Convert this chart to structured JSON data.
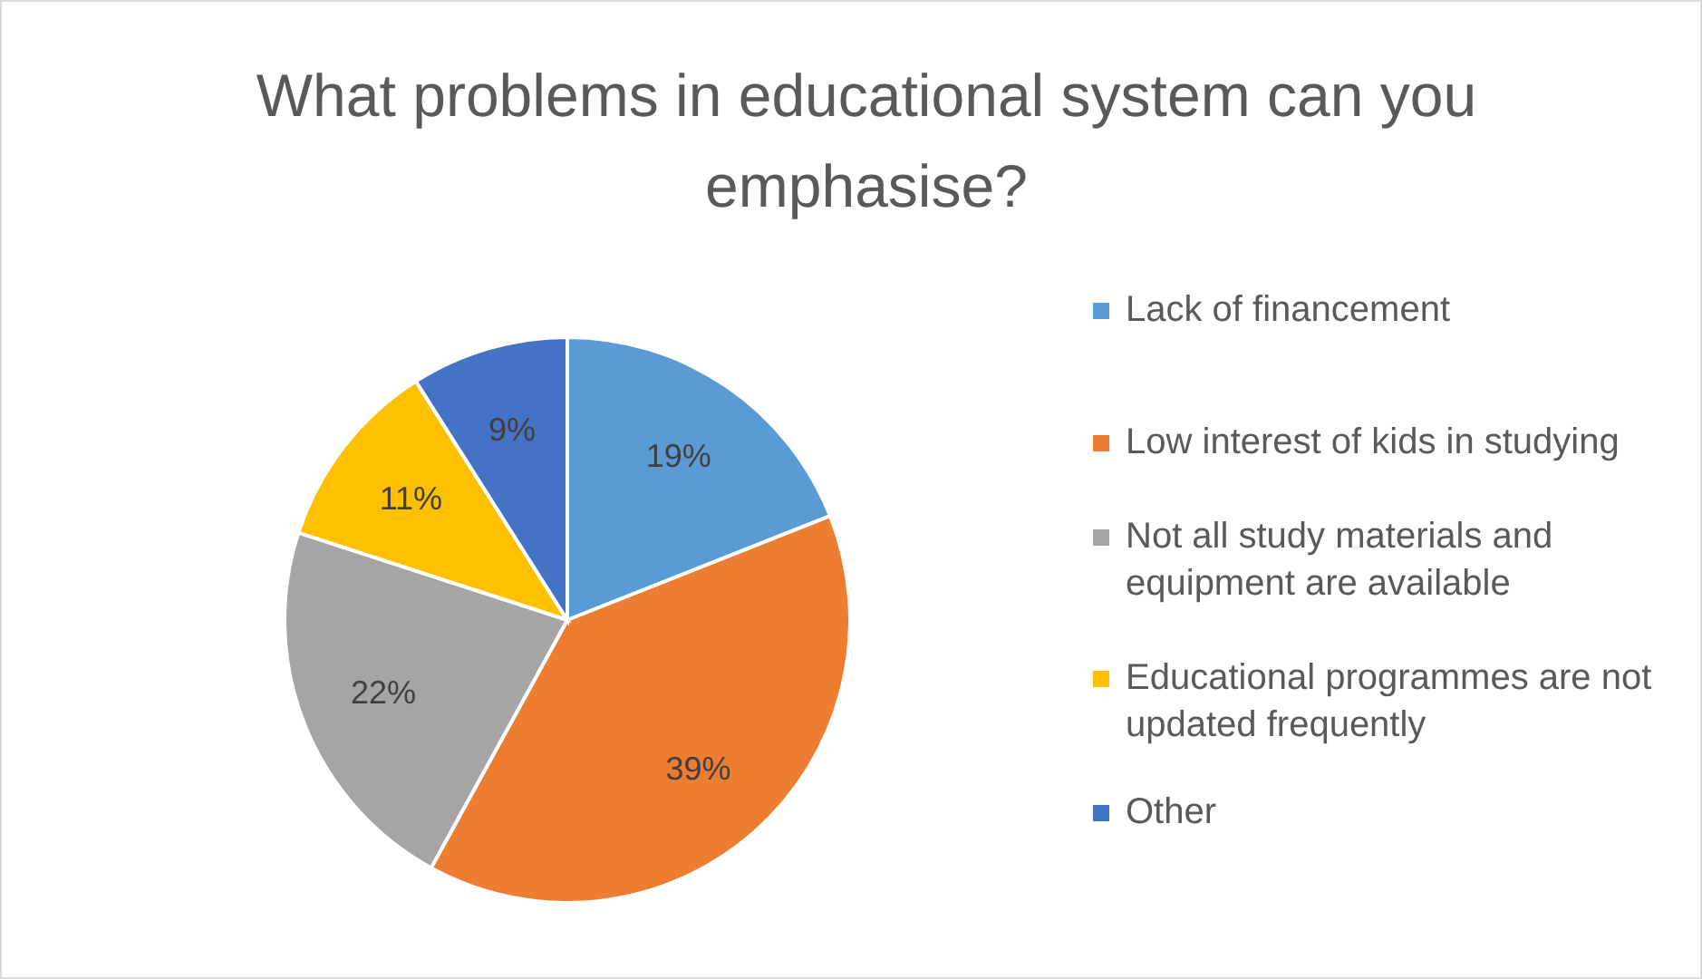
{
  "chart_data": {
    "type": "pie",
    "title": "What problems in educational system can you emphasise?",
    "categories": [
      "Lack of financement",
      "Low interest of kids in studying",
      "Not all study materials and equipment are available",
      "Educational programmes are not updated frequently",
      "Other"
    ],
    "values": [
      19,
      39,
      22,
      11,
      9
    ],
    "colors": [
      "#5b9bd5",
      "#ed7d31",
      "#a5a5a5",
      "#ffc000",
      "#4472c4"
    ],
    "value_labels": [
      "19%",
      "39%",
      "22%",
      "11%",
      "9%"
    ],
    "legend": "right"
  }
}
